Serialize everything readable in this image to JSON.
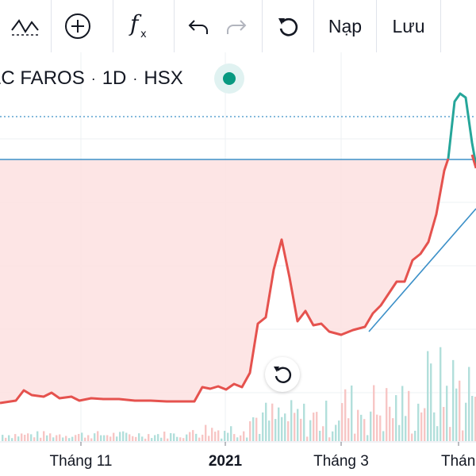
{
  "toolbar": {
    "load_label": "Nạp",
    "save_label": "Lưu"
  },
  "symbol": {
    "name": "LC FAROS",
    "interval": "1D",
    "exchange": "HSX",
    "status_color": "#089981"
  },
  "icons": {
    "indicators": "indicators-icon",
    "add": "plus-circle-icon",
    "formula": "fx-icon",
    "undo": "undo-icon",
    "redo": "redo-icon",
    "refresh": "refresh-icon",
    "reset_view": "reset-view-icon"
  },
  "colors": {
    "up": "#26a69a",
    "down": "#ef5350",
    "fill": "#fde0e0",
    "trendline": "#3c90c8"
  },
  "chart_data": {
    "type": "area",
    "x_labels": [
      "Tháng 11",
      "2021",
      "Tháng 3",
      "Thán"
    ],
    "bold_labels": [
      "2021"
    ],
    "grid": true
  }
}
